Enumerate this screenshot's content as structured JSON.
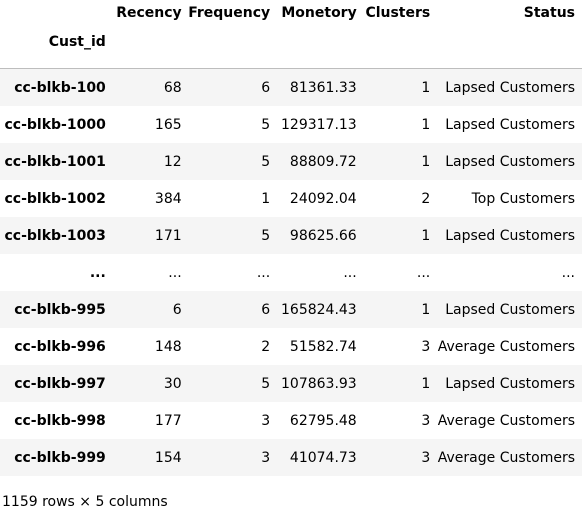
{
  "table": {
    "columns": [
      "Recency",
      "Frequency",
      "Monetory",
      "Clusters",
      "Status"
    ],
    "index_name": "Cust_id",
    "rows": [
      {
        "id": "cc-blkb-100",
        "recency": "68",
        "frequency": "6",
        "monetory": "81361.33",
        "clusters": "1",
        "status": "Lapsed Customers"
      },
      {
        "id": "cc-blkb-1000",
        "recency": "165",
        "frequency": "5",
        "monetory": "129317.13",
        "clusters": "1",
        "status": "Lapsed Customers"
      },
      {
        "id": "cc-blkb-1001",
        "recency": "12",
        "frequency": "5",
        "monetory": "88809.72",
        "clusters": "1",
        "status": "Lapsed Customers"
      },
      {
        "id": "cc-blkb-1002",
        "recency": "384",
        "frequency": "1",
        "monetory": "24092.04",
        "clusters": "2",
        "status": "Top Customers"
      },
      {
        "id": "cc-blkb-1003",
        "recency": "171",
        "frequency": "5",
        "monetory": "98625.66",
        "clusters": "1",
        "status": "Lapsed Customers"
      },
      {
        "id": "...",
        "recency": "...",
        "frequency": "...",
        "monetory": "...",
        "clusters": "...",
        "status": "..."
      },
      {
        "id": "cc-blkb-995",
        "recency": "6",
        "frequency": "6",
        "monetory": "165824.43",
        "clusters": "1",
        "status": "Lapsed Customers"
      },
      {
        "id": "cc-blkb-996",
        "recency": "148",
        "frequency": "2",
        "monetory": "51582.74",
        "clusters": "3",
        "status": "Average Customers"
      },
      {
        "id": "cc-blkb-997",
        "recency": "30",
        "frequency": "5",
        "monetory": "107863.93",
        "clusters": "1",
        "status": "Lapsed Customers"
      },
      {
        "id": "cc-blkb-998",
        "recency": "177",
        "frequency": "3",
        "monetory": "62795.48",
        "clusters": "3",
        "status": "Average Customers"
      },
      {
        "id": "cc-blkb-999",
        "recency": "154",
        "frequency": "3",
        "monetory": "41074.73",
        "clusters": "3",
        "status": "Average Customers"
      }
    ]
  },
  "footer": "1159 rows × 5 columns"
}
